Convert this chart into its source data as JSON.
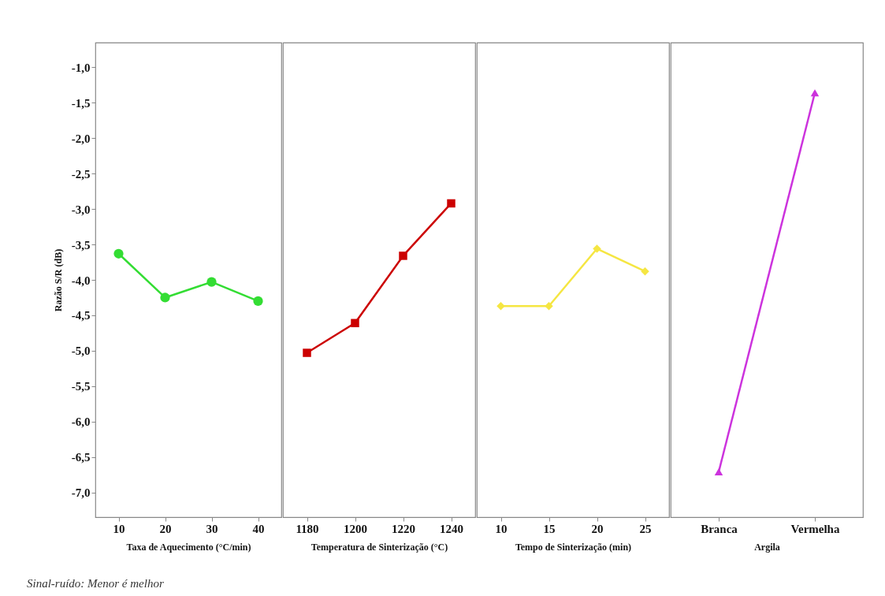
{
  "chart_data": [
    {
      "type": "line",
      "categories": [
        "10",
        "20",
        "30",
        "40"
      ],
      "xlabel": "Taxa de Aquecimento (°C/min)",
      "ylabel": "Razão S/R (dB)",
      "marker": "circle",
      "grid": false,
      "series": [
        {
          "color": "#33dd33",
          "values": [
            -3.63,
            -4.25,
            -4.03,
            -4.3
          ]
        }
      ],
      "ylim": [
        -7.35,
        -0.65
      ],
      "yticks": [
        {
          "value": -1,
          "label": "-1,0"
        },
        {
          "value": -1.5,
          "label": "-1,5"
        },
        {
          "value": -2,
          "label": "-2,0"
        },
        {
          "value": -2.5,
          "label": "-2,5"
        },
        {
          "value": -3,
          "label": "-3,0"
        },
        {
          "value": -3.5,
          "label": "-3,5"
        },
        {
          "value": -4,
          "label": "-4,0"
        },
        {
          "value": -4.5,
          "label": "-4,5"
        },
        {
          "value": -5,
          "label": "-5,0"
        },
        {
          "value": -5.5,
          "label": "-5,5"
        },
        {
          "value": -6,
          "label": "-6,0"
        },
        {
          "value": -6.5,
          "label": "-6,5"
        },
        {
          "value": -7,
          "label": "-7,0"
        }
      ],
      "annotations": [
        "Sinal-ruído: Menor é melhor"
      ]
    },
    {
      "type": "line",
      "categories": [
        "1180",
        "1200",
        "1220",
        "1240"
      ],
      "xlabel": "Temperatura de Sinterização (°C)",
      "marker": "square",
      "grid": false,
      "tick_labels": "x",
      "series": [
        {
          "color": "#cc0000",
          "values": [
            -5.03,
            -4.61,
            -3.66,
            -2.92
          ]
        }
      ],
      "ylim": [
        -7.35,
        -0.65
      ]
    },
    {
      "type": "line",
      "categories": [
        "10",
        "15",
        "20",
        "25"
      ],
      "xlabel": "Tempo de Sinterização (min)",
      "marker": "diamond",
      "grid": false,
      "tick_labels": "x",
      "series": [
        {
          "color": "#f5e642",
          "values": [
            -4.37,
            -4.37,
            -3.56,
            -3.88
          ]
        }
      ],
      "ylim": [
        -7.35,
        -0.65
      ]
    },
    {
      "type": "line",
      "categories": [
        "Branca",
        "Vermelha"
      ],
      "xlabel": "Argila",
      "marker": "triangle",
      "grid": false,
      "tick_labels": "x",
      "series": [
        {
          "color": "#cc33dd",
          "values": [
            -6.71,
            -1.36
          ]
        }
      ],
      "ylim": [
        -7.35,
        -0.65
      ]
    }
  ]
}
